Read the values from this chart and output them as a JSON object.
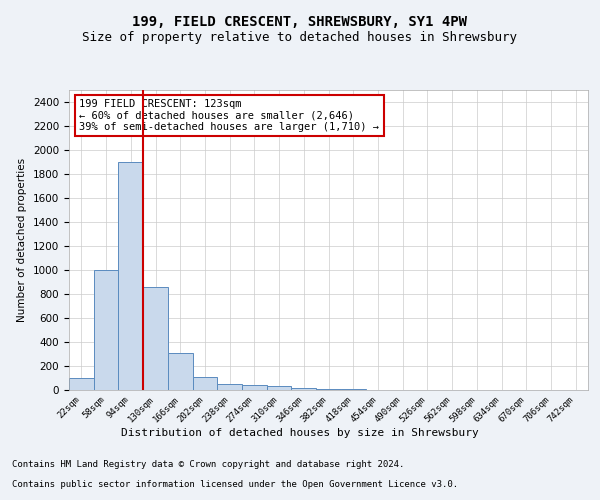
{
  "title1": "199, FIELD CRESCENT, SHREWSBURY, SY1 4PW",
  "title2": "Size of property relative to detached houses in Shrewsbury",
  "xlabel": "Distribution of detached houses by size in Shrewsbury",
  "ylabel": "Number of detached properties",
  "categories": [
    "22sqm",
    "58sqm",
    "94sqm",
    "130sqm",
    "166sqm",
    "202sqm",
    "238sqm",
    "274sqm",
    "310sqm",
    "346sqm",
    "382sqm",
    "418sqm",
    "454sqm",
    "490sqm",
    "526sqm",
    "562sqm",
    "598sqm",
    "634sqm",
    "670sqm",
    "706sqm",
    "742sqm"
  ],
  "bar_values": [
    100,
    1000,
    1900,
    860,
    310,
    110,
    50,
    40,
    30,
    20,
    10,
    5,
    3,
    2,
    2,
    1,
    1,
    1,
    0,
    0,
    0
  ],
  "bar_color": "#c9d9ec",
  "bar_edgecolor": "#5a8bbf",
  "vline_color": "#cc0000",
  "annotation_text": "199 FIELD CRESCENT: 123sqm\n← 60% of detached houses are smaller (2,646)\n39% of semi-detached houses are larger (1,710) →",
  "annotation_box_color": "#ffffff",
  "annotation_box_edgecolor": "#cc0000",
  "ylim": [
    0,
    2500
  ],
  "yticks": [
    0,
    200,
    400,
    600,
    800,
    1000,
    1200,
    1400,
    1600,
    1800,
    2000,
    2200,
    2400
  ],
  "footer1": "Contains HM Land Registry data © Crown copyright and database right 2024.",
  "footer2": "Contains public sector information licensed under the Open Government Licence v3.0.",
  "bg_color": "#eef2f7",
  "plot_bg_color": "#ffffff",
  "title_fontsize": 10,
  "subtitle_fontsize": 9,
  "footer_fontsize": 6.5
}
